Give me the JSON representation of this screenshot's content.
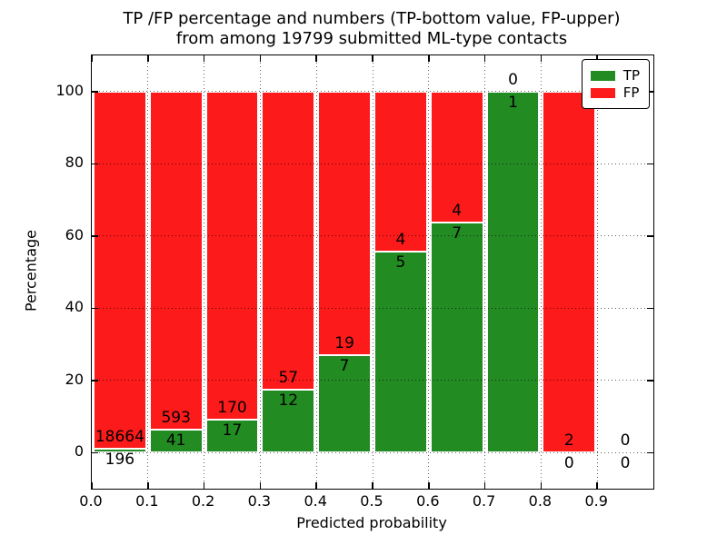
{
  "chart_data": {
    "type": "bar",
    "variant": "stacked-percentage-histogram",
    "title": "TP /FP percentage and numbers (TP-bottom value, FP-upper)",
    "subtitle": "from among 19799 submitted ML-type contacts",
    "total_submitted_contacts": 19799,
    "xlabel": "Predicted probability",
    "ylabel": "Percentage",
    "xlim": [
      0.0,
      1.0
    ],
    "ylim": [
      -10,
      110
    ],
    "xticks": [
      "0.0",
      "0.1",
      "0.2",
      "0.3",
      "0.4",
      "0.5",
      "0.6",
      "0.7",
      "0.8",
      "0.9"
    ],
    "yticks": [
      "0",
      "20",
      "40",
      "60",
      "80",
      "100"
    ],
    "grid": "dotted, both axes, drawn over bars",
    "legend_position": "upper right",
    "series": [
      {
        "name": "TP",
        "color": "#228b22",
        "position": "bottom"
      },
      {
        "name": "FP",
        "color": "#fc1a1a",
        "position": "top"
      }
    ],
    "bin_width": 0.1,
    "bins": [
      {
        "x_start": 0.0,
        "x_end": 0.1,
        "tp": 196,
        "fp": 18664,
        "tp_pct": 1.0
      },
      {
        "x_start": 0.1,
        "x_end": 0.2,
        "tp": 41,
        "fp": 593,
        "tp_pct": 6.5
      },
      {
        "x_start": 0.2,
        "x_end": 0.3,
        "tp": 17,
        "fp": 170,
        "tp_pct": 9.1
      },
      {
        "x_start": 0.3,
        "x_end": 0.4,
        "tp": 12,
        "fp": 57,
        "tp_pct": 17.4
      },
      {
        "x_start": 0.4,
        "x_end": 0.5,
        "tp": 7,
        "fp": 19,
        "tp_pct": 26.9
      },
      {
        "x_start": 0.5,
        "x_end": 0.6,
        "tp": 5,
        "fp": 4,
        "tp_pct": 55.6
      },
      {
        "x_start": 0.6,
        "x_end": 0.7,
        "tp": 7,
        "fp": 4,
        "tp_pct": 63.6
      },
      {
        "x_start": 0.7,
        "x_end": 0.8,
        "tp": 1,
        "fp": 0,
        "tp_pct": 100.0
      },
      {
        "x_start": 0.8,
        "x_end": 0.9,
        "tp": 0,
        "fp": 2,
        "tp_pct": 0.0
      },
      {
        "x_start": 0.9,
        "x_end": 1.0,
        "tp": 0,
        "fp": 0,
        "tp_pct": null
      }
    ]
  },
  "colors": {
    "tp_green": "#228b22",
    "fp_red": "#fc1a1a",
    "text": "#000000",
    "background": "#ffffff",
    "grid": "rgba(0,0,0,0.62)",
    "bar_edge": "#ffffff"
  }
}
